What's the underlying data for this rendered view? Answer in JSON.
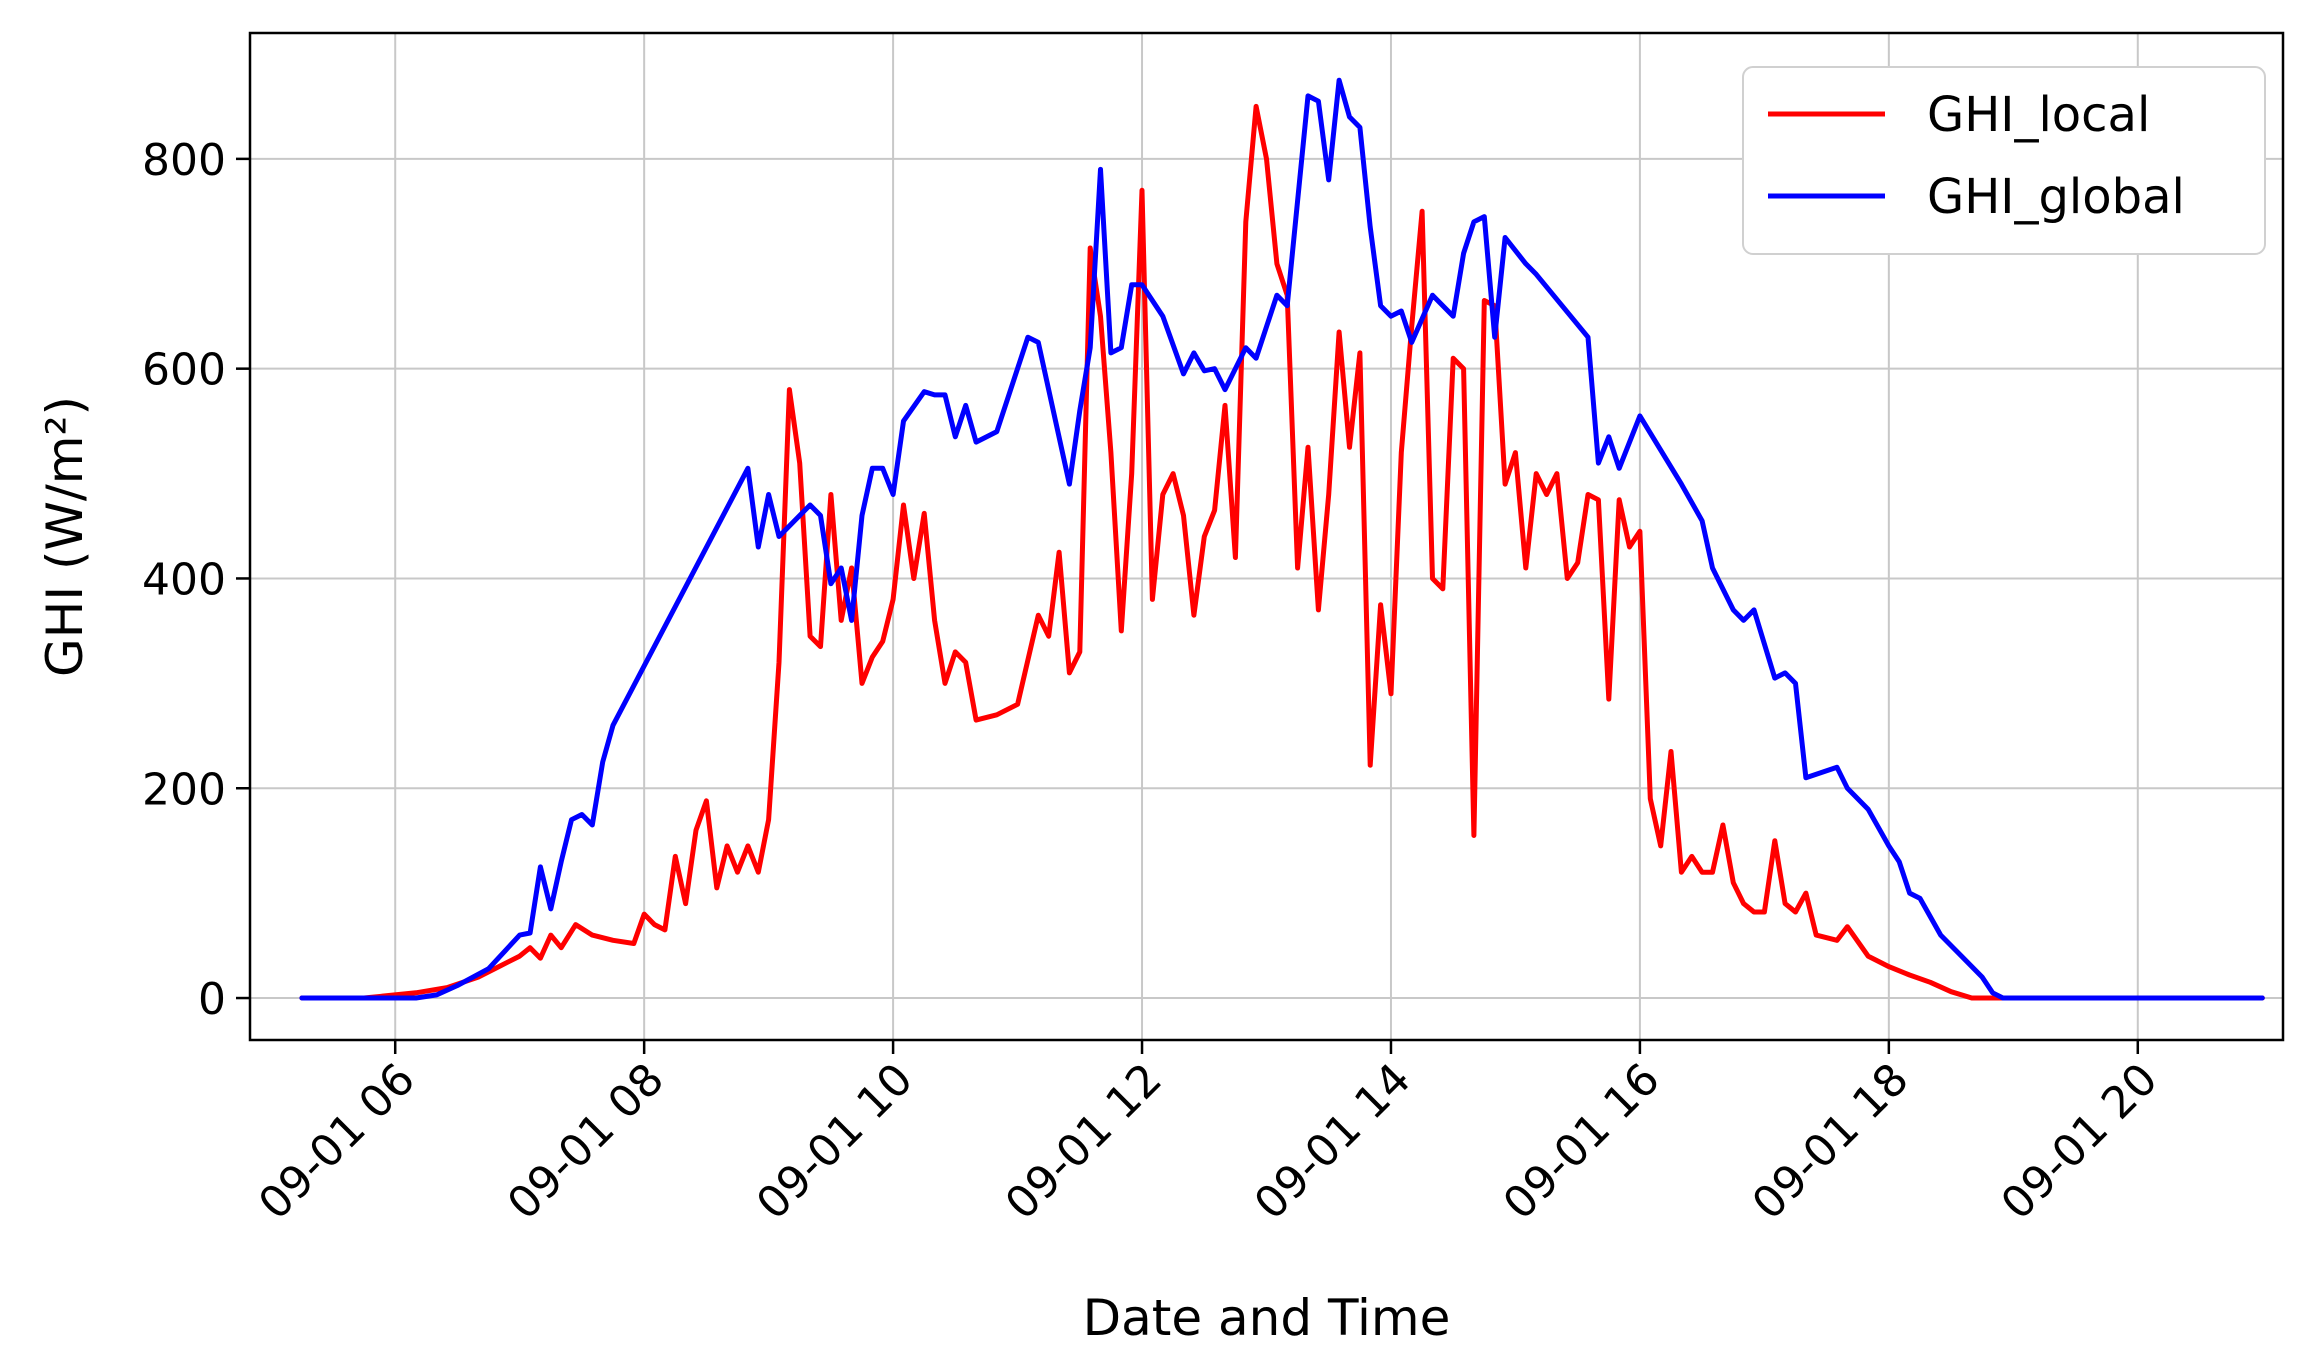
{
  "chart_data": {
    "type": "line",
    "xlabel": "Date and Time",
    "ylabel": "GHI (W/m²)",
    "xlim": [
      "09-01 04:50",
      "09-01 21:10"
    ],
    "ylim": [
      -40,
      920
    ],
    "grid": true,
    "legend_position": "top-right",
    "x_ticks": [
      {
        "t": "09-01 06:00",
        "label": "09-01 06"
      },
      {
        "t": "09-01 08:00",
        "label": "09-01 08"
      },
      {
        "t": "09-01 10:00",
        "label": "09-01 10"
      },
      {
        "t": "09-01 12:00",
        "label": "09-01 12"
      },
      {
        "t": "09-01 14:00",
        "label": "09-01 14"
      },
      {
        "t": "09-01 16:00",
        "label": "09-01 16"
      },
      {
        "t": "09-01 18:00",
        "label": "09-01 18"
      },
      {
        "t": "09-01 20:00",
        "label": "09-01 20"
      }
    ],
    "y_ticks": [
      {
        "v": 0,
        "label": "0"
      },
      {
        "v": 200,
        "label": "200"
      },
      {
        "v": 400,
        "label": "400"
      },
      {
        "v": 600,
        "label": "600"
      },
      {
        "v": 800,
        "label": "800"
      }
    ],
    "series": [
      {
        "name": "GHI_local",
        "color": "#ff0000",
        "points": [
          [
            "09-01 05:15",
            0
          ],
          [
            "09-01 05:45",
            0
          ],
          [
            "09-01 06:10",
            5
          ],
          [
            "09-01 06:25",
            10
          ],
          [
            "09-01 06:40",
            20
          ],
          [
            "09-01 06:50",
            30
          ],
          [
            "09-01 07:00",
            40
          ],
          [
            "09-01 07:05",
            48
          ],
          [
            "09-01 07:10",
            38
          ],
          [
            "09-01 07:15",
            60
          ],
          [
            "09-01 07:20",
            48
          ],
          [
            "09-01 07:27",
            70
          ],
          [
            "09-01 07:35",
            60
          ],
          [
            "09-01 07:45",
            55
          ],
          [
            "09-01 07:55",
            52
          ],
          [
            "09-01 08:00",
            80
          ],
          [
            "09-01 08:05",
            70
          ],
          [
            "09-01 08:10",
            65
          ],
          [
            "09-01 08:15",
            135
          ],
          [
            "09-01 08:20",
            90
          ],
          [
            "09-01 08:25",
            160
          ],
          [
            "09-01 08:30",
            188
          ],
          [
            "09-01 08:35",
            105
          ],
          [
            "09-01 08:40",
            145
          ],
          [
            "09-01 08:45",
            120
          ],
          [
            "09-01 08:50",
            145
          ],
          [
            "09-01 08:55",
            120
          ],
          [
            "09-01 09:00",
            170
          ],
          [
            "09-01 09:05",
            320
          ],
          [
            "09-01 09:10",
            580
          ],
          [
            "09-01 09:15",
            510
          ],
          [
            "09-01 09:20",
            345
          ],
          [
            "09-01 09:25",
            335
          ],
          [
            "09-01 09:30",
            480
          ],
          [
            "09-01 09:35",
            360
          ],
          [
            "09-01 09:40",
            410
          ],
          [
            "09-01 09:45",
            300
          ],
          [
            "09-01 09:50",
            325
          ],
          [
            "09-01 09:55",
            340
          ],
          [
            "09-01 10:00",
            380
          ],
          [
            "09-01 10:05",
            470
          ],
          [
            "09-01 10:10",
            400
          ],
          [
            "09-01 10:15",
            462
          ],
          [
            "09-01 10:20",
            360
          ],
          [
            "09-01 10:25",
            300
          ],
          [
            "09-01 10:30",
            330
          ],
          [
            "09-01 10:35",
            320
          ],
          [
            "09-01 10:40",
            265
          ],
          [
            "09-01 10:50",
            270
          ],
          [
            "09-01 11:00",
            280
          ],
          [
            "09-01 11:10",
            365
          ],
          [
            "09-01 11:15",
            345
          ],
          [
            "09-01 11:20",
            425
          ],
          [
            "09-01 11:25",
            310
          ],
          [
            "09-01 11:30",
            330
          ],
          [
            "09-01 11:35",
            715
          ],
          [
            "09-01 11:40",
            650
          ],
          [
            "09-01 11:45",
            520
          ],
          [
            "09-01 11:50",
            350
          ],
          [
            "09-01 11:55",
            500
          ],
          [
            "09-01 12:00",
            770
          ],
          [
            "09-01 12:05",
            380
          ],
          [
            "09-01 12:10",
            480
          ],
          [
            "09-01 12:15",
            500
          ],
          [
            "09-01 12:20",
            460
          ],
          [
            "09-01 12:25",
            365
          ],
          [
            "09-01 12:30",
            440
          ],
          [
            "09-01 12:35",
            465
          ],
          [
            "09-01 12:40",
            565
          ],
          [
            "09-01 12:45",
            420
          ],
          [
            "09-01 12:50",
            740
          ],
          [
            "09-01 12:55",
            850
          ],
          [
            "09-01 13:00",
            800
          ],
          [
            "09-01 13:05",
            700
          ],
          [
            "09-01 13:10",
            670
          ],
          [
            "09-01 13:15",
            410
          ],
          [
            "09-01 13:20",
            525
          ],
          [
            "09-01 13:25",
            370
          ],
          [
            "09-01 13:30",
            480
          ],
          [
            "09-01 13:35",
            635
          ],
          [
            "09-01 13:40",
            525
          ],
          [
            "09-01 13:45",
            615
          ],
          [
            "09-01 13:50",
            222
          ],
          [
            "09-01 13:55",
            375
          ],
          [
            "09-01 14:00",
            290
          ],
          [
            "09-01 14:05",
            520
          ],
          [
            "09-01 14:10",
            640
          ],
          [
            "09-01 14:15",
            750
          ],
          [
            "09-01 14:20",
            400
          ],
          [
            "09-01 14:25",
            390
          ],
          [
            "09-01 14:30",
            610
          ],
          [
            "09-01 14:35",
            600
          ],
          [
            "09-01 14:40",
            155
          ],
          [
            "09-01 14:45",
            665
          ],
          [
            "09-01 14:50",
            660
          ],
          [
            "09-01 14:55",
            490
          ],
          [
            "09-01 15:00",
            520
          ],
          [
            "09-01 15:05",
            410
          ],
          [
            "09-01 15:10",
            500
          ],
          [
            "09-01 15:15",
            480
          ],
          [
            "09-01 15:20",
            500
          ],
          [
            "09-01 15:25",
            400
          ],
          [
            "09-01 15:30",
            415
          ],
          [
            "09-01 15:35",
            480
          ],
          [
            "09-01 15:40",
            475
          ],
          [
            "09-01 15:45",
            285
          ],
          [
            "09-01 15:50",
            475
          ],
          [
            "09-01 15:55",
            430
          ],
          [
            "09-01 16:00",
            445
          ],
          [
            "09-01 16:05",
            190
          ],
          [
            "09-01 16:10",
            145
          ],
          [
            "09-01 16:15",
            235
          ],
          [
            "09-01 16:20",
            120
          ],
          [
            "09-01 16:25",
            135
          ],
          [
            "09-01 16:30",
            120
          ],
          [
            "09-01 16:35",
            120
          ],
          [
            "09-01 16:40",
            165
          ],
          [
            "09-01 16:45",
            110
          ],
          [
            "09-01 16:50",
            90
          ],
          [
            "09-01 16:55",
            82
          ],
          [
            "09-01 17:00",
            82
          ],
          [
            "09-01 17:05",
            150
          ],
          [
            "09-01 17:10",
            90
          ],
          [
            "09-01 17:15",
            82
          ],
          [
            "09-01 17:20",
            100
          ],
          [
            "09-01 17:25",
            60
          ],
          [
            "09-01 17:35",
            55
          ],
          [
            "09-01 17:40",
            68
          ],
          [
            "09-01 17:50",
            40
          ],
          [
            "09-01 18:00",
            30
          ],
          [
            "09-01 18:10",
            22
          ],
          [
            "09-01 18:20",
            15
          ],
          [
            "09-01 18:30",
            6
          ],
          [
            "09-01 18:40",
            0
          ],
          [
            "09-01 21:00",
            0
          ]
        ]
      },
      {
        "name": "GHI_global",
        "color": "#0000ff",
        "points": [
          [
            "09-01 05:15",
            0
          ],
          [
            "09-01 06:10",
            0
          ],
          [
            "09-01 06:20",
            3
          ],
          [
            "09-01 06:30",
            12
          ],
          [
            "09-01 06:45",
            28
          ],
          [
            "09-01 07:00",
            60
          ],
          [
            "09-01 07:05",
            62
          ],
          [
            "09-01 07:10",
            125
          ],
          [
            "09-01 07:15",
            85
          ],
          [
            "09-01 07:20",
            130
          ],
          [
            "09-01 07:25",
            170
          ],
          [
            "09-01 07:30",
            175
          ],
          [
            "09-01 07:35",
            165
          ],
          [
            "09-01 07:40",
            225
          ],
          [
            "09-01 07:45",
            260
          ],
          [
            "09-01 08:50",
            505
          ],
          [
            "09-01 08:55",
            430
          ],
          [
            "09-01 09:00",
            480
          ],
          [
            "09-01 09:05",
            440
          ],
          [
            "09-01 09:15",
            460
          ],
          [
            "09-01 09:20",
            470
          ],
          [
            "09-01 09:25",
            460
          ],
          [
            "09-01 09:30",
            395
          ],
          [
            "09-01 09:35",
            410
          ],
          [
            "09-01 09:40",
            360
          ],
          [
            "09-01 09:45",
            460
          ],
          [
            "09-01 09:50",
            505
          ],
          [
            "09-01 09:55",
            505
          ],
          [
            "09-01 10:00",
            480
          ],
          [
            "09-01 10:05",
            550
          ],
          [
            "09-01 10:15",
            578
          ],
          [
            "09-01 10:20",
            575
          ],
          [
            "09-01 10:25",
            575
          ],
          [
            "09-01 10:30",
            535
          ],
          [
            "09-01 10:35",
            565
          ],
          [
            "09-01 10:40",
            530
          ],
          [
            "09-01 10:50",
            540
          ],
          [
            "09-01 11:05",
            630
          ],
          [
            "09-01 11:10",
            625
          ],
          [
            "09-01 11:25",
            490
          ],
          [
            "09-01 11:30",
            560
          ],
          [
            "09-01 11:35",
            620
          ],
          [
            "09-01 11:40",
            790
          ],
          [
            "09-01 11:45",
            615
          ],
          [
            "09-01 11:50",
            620
          ],
          [
            "09-01 11:55",
            680
          ],
          [
            "09-01 12:00",
            680
          ],
          [
            "09-01 12:10",
            650
          ],
          [
            "09-01 12:20",
            595
          ],
          [
            "09-01 12:25",
            615
          ],
          [
            "09-01 12:30",
            598
          ],
          [
            "09-01 12:35",
            600
          ],
          [
            "09-01 12:40",
            580
          ],
          [
            "09-01 12:50",
            620
          ],
          [
            "09-01 12:55",
            610
          ],
          [
            "09-01 13:05",
            670
          ],
          [
            "09-01 13:10",
            660
          ],
          [
            "09-01 13:20",
            860
          ],
          [
            "09-01 13:25",
            855
          ],
          [
            "09-01 13:30",
            780
          ],
          [
            "09-01 13:35",
            875
          ],
          [
            "09-01 13:40",
            840
          ],
          [
            "09-01 13:45",
            830
          ],
          [
            "09-01 13:50",
            735
          ],
          [
            "09-01 13:55",
            660
          ],
          [
            "09-01 14:00",
            650
          ],
          [
            "09-01 14:05",
            655
          ],
          [
            "09-01 14:10",
            625
          ],
          [
            "09-01 14:20",
            670
          ],
          [
            "09-01 14:30",
            650
          ],
          [
            "09-01 14:35",
            710
          ],
          [
            "09-01 14:40",
            740
          ],
          [
            "09-01 14:45",
            745
          ],
          [
            "09-01 14:50",
            630
          ],
          [
            "09-01 14:55",
            725
          ],
          [
            "09-01 15:05",
            700
          ],
          [
            "09-01 15:10",
            690
          ],
          [
            "09-01 15:35",
            630
          ],
          [
            "09-01 15:40",
            510
          ],
          [
            "09-01 15:45",
            535
          ],
          [
            "09-01 15:50",
            505
          ],
          [
            "09-01 16:00",
            555
          ],
          [
            "09-01 16:20",
            490
          ],
          [
            "09-01 16:30",
            455
          ],
          [
            "09-01 16:35",
            410
          ],
          [
            "09-01 16:45",
            370
          ],
          [
            "09-01 16:50",
            360
          ],
          [
            "09-01 16:55",
            370
          ],
          [
            "09-01 17:05",
            305
          ],
          [
            "09-01 17:10",
            310
          ],
          [
            "09-01 17:15",
            300
          ],
          [
            "09-01 17:20",
            210
          ],
          [
            "09-01 17:35",
            220
          ],
          [
            "09-01 17:40",
            200
          ],
          [
            "09-01 17:50",
            180
          ],
          [
            "09-01 18:00",
            145
          ],
          [
            "09-01 18:05",
            130
          ],
          [
            "09-01 18:10",
            100
          ],
          [
            "09-01 18:15",
            95
          ],
          [
            "09-01 18:25",
            60
          ],
          [
            "09-01 18:35",
            40
          ],
          [
            "09-01 18:45",
            20
          ],
          [
            "09-01 18:50",
            5
          ],
          [
            "09-01 18:55",
            0
          ],
          [
            "09-01 21:00",
            0
          ]
        ]
      }
    ]
  }
}
